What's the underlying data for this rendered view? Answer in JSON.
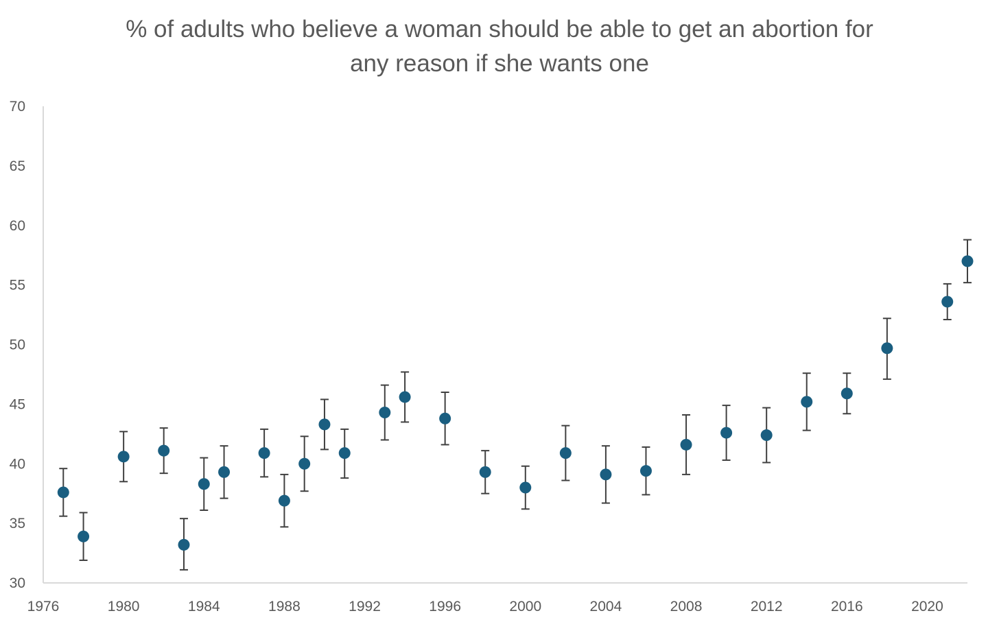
{
  "chart_data": {
    "type": "scatter",
    "title_lines": [
      "% of adults who believe a woman should be able to get an abortion for",
      "any reason if she wants one"
    ],
    "xlabel": "",
    "ylabel": "",
    "xlim": [
      1976,
      2022
    ],
    "ylim": [
      30,
      70
    ],
    "x_ticks": [
      1976,
      1980,
      1984,
      1988,
      1992,
      1996,
      2000,
      2004,
      2008,
      2012,
      2016,
      2020
    ],
    "y_ticks": [
      30,
      35,
      40,
      45,
      50,
      55,
      60,
      65,
      70
    ],
    "grid": false,
    "legend": "none",
    "error_bars": true,
    "colors": {
      "marker": "#1a5e80",
      "error_bar": "#404040",
      "axis": "#d9d9d9",
      "text": "#595959"
    },
    "points": [
      {
        "x": 1977,
        "y": 37.6,
        "low": 35.6,
        "high": 39.6
      },
      {
        "x": 1978,
        "y": 33.9,
        "low": 31.9,
        "high": 35.9
      },
      {
        "x": 1980,
        "y": 40.6,
        "low": 38.5,
        "high": 42.7
      },
      {
        "x": 1982,
        "y": 41.1,
        "low": 39.2,
        "high": 43.0
      },
      {
        "x": 1983,
        "y": 33.2,
        "low": 31.1,
        "high": 35.4
      },
      {
        "x": 1984,
        "y": 38.3,
        "low": 36.1,
        "high": 40.5
      },
      {
        "x": 1985,
        "y": 39.3,
        "low": 37.1,
        "high": 41.5
      },
      {
        "x": 1987,
        "y": 40.9,
        "low": 38.9,
        "high": 42.9
      },
      {
        "x": 1988,
        "y": 36.9,
        "low": 34.7,
        "high": 39.1
      },
      {
        "x": 1989,
        "y": 40.0,
        "low": 37.7,
        "high": 42.3
      },
      {
        "x": 1990,
        "y": 43.3,
        "low": 41.2,
        "high": 45.4
      },
      {
        "x": 1991,
        "y": 40.9,
        "low": 38.8,
        "high": 42.9
      },
      {
        "x": 1993,
        "y": 44.3,
        "low": 42.0,
        "high": 46.6
      },
      {
        "x": 1994,
        "y": 45.6,
        "low": 43.5,
        "high": 47.7
      },
      {
        "x": 1996,
        "y": 43.8,
        "low": 41.6,
        "high": 46.0
      },
      {
        "x": 1998,
        "y": 39.3,
        "low": 37.5,
        "high": 41.1
      },
      {
        "x": 2000,
        "y": 38.0,
        "low": 36.2,
        "high": 39.8
      },
      {
        "x": 2002,
        "y": 40.9,
        "low": 38.6,
        "high": 43.2
      },
      {
        "x": 2004,
        "y": 39.1,
        "low": 36.7,
        "high": 41.5
      },
      {
        "x": 2006,
        "y": 39.4,
        "low": 37.4,
        "high": 41.4
      },
      {
        "x": 2008,
        "y": 41.6,
        "low": 39.1,
        "high": 44.1
      },
      {
        "x": 2010,
        "y": 42.6,
        "low": 40.3,
        "high": 44.9
      },
      {
        "x": 2012,
        "y": 42.4,
        "low": 40.1,
        "high": 44.7
      },
      {
        "x": 2014,
        "y": 45.2,
        "low": 42.8,
        "high": 47.6
      },
      {
        "x": 2016,
        "y": 45.9,
        "low": 44.2,
        "high": 47.6
      },
      {
        "x": 2018,
        "y": 49.7,
        "low": 47.1,
        "high": 52.2
      },
      {
        "x": 2021,
        "y": 53.6,
        "low": 52.1,
        "high": 55.1
      },
      {
        "x": 2022,
        "y": 57.0,
        "low": 55.2,
        "high": 58.8
      }
    ]
  }
}
